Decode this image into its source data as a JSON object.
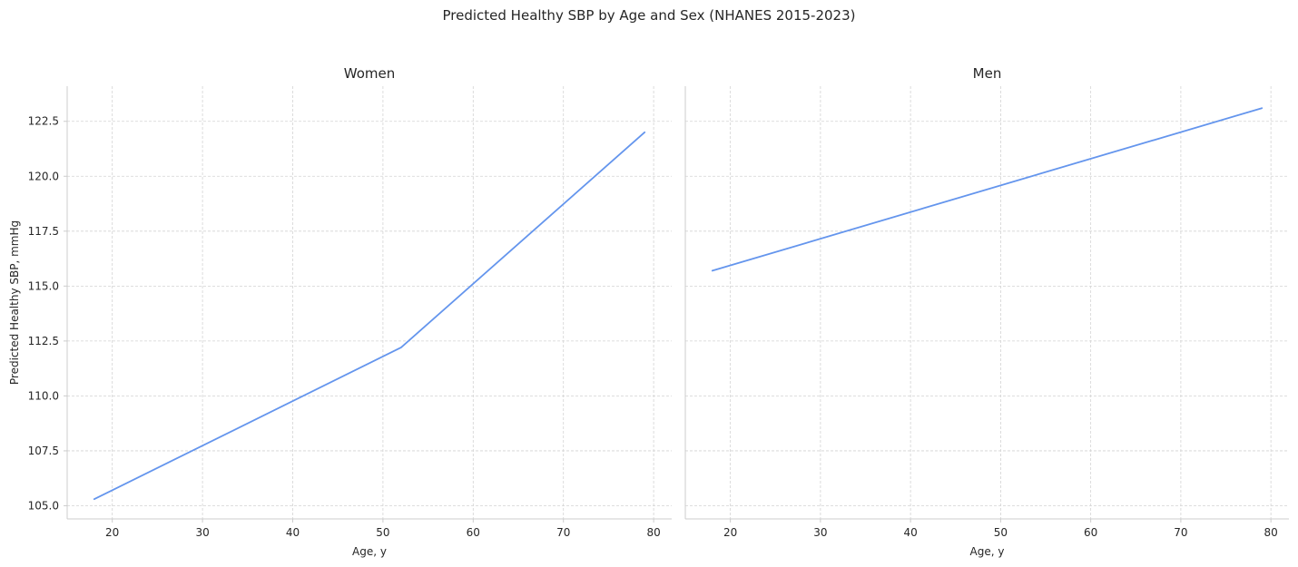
{
  "title": "Predicted Healthy SBP by Age and Sex (NHANES 2015-2023)",
  "colors": {
    "line": "#6495ed"
  },
  "chart_data": [
    {
      "type": "line",
      "title": "Women",
      "xlabel": "Age, y",
      "ylabel": "Predicted Healthy SBP, mmHg",
      "xlim": [
        15,
        82
      ],
      "ylim": [
        104.4,
        124.1
      ],
      "xticks": [
        20,
        30,
        40,
        50,
        60,
        70,
        80
      ],
      "yticks": [
        105.0,
        107.5,
        110.0,
        112.5,
        115.0,
        117.5,
        120.0,
        122.5
      ],
      "xtick_labels": [
        "20",
        "30",
        "40",
        "50",
        "60",
        "70",
        "80"
      ],
      "ytick_labels": [
        "105.0",
        "107.5",
        "110.0",
        "112.5",
        "115.0",
        "117.5",
        "120.0",
        "122.5"
      ],
      "grid": true,
      "series": [
        {
          "x": [
            18,
            52,
            79
          ],
          "values": [
            105.3,
            112.2,
            122.0
          ]
        }
      ]
    },
    {
      "type": "line",
      "title": "Men",
      "xlabel": "Age, y",
      "ylabel": "",
      "xlim": [
        15,
        82
      ],
      "ylim": [
        104.4,
        124.1
      ],
      "xticks": [
        20,
        30,
        40,
        50,
        60,
        70,
        80
      ],
      "yticks": [
        105.0,
        107.5,
        110.0,
        112.5,
        115.0,
        117.5,
        120.0,
        122.5
      ],
      "xtick_labels": [
        "20",
        "30",
        "40",
        "50",
        "60",
        "70",
        "80"
      ],
      "ytick_labels": [],
      "grid": true,
      "series": [
        {
          "x": [
            18,
            79
          ],
          "values": [
            115.7,
            123.1
          ]
        }
      ]
    }
  ]
}
